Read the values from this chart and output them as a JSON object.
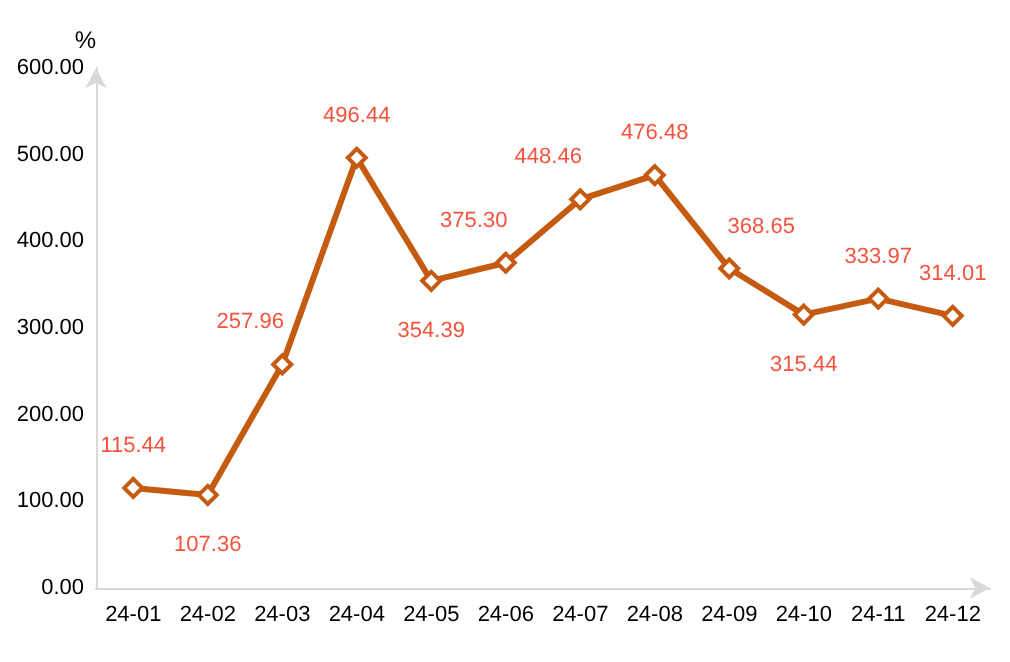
{
  "chart_data": {
    "type": "line",
    "ylabel": "%",
    "categories": [
      "24-01",
      "24-02",
      "24-03",
      "24-04",
      "24-05",
      "24-06",
      "24-07",
      "24-08",
      "24-09",
      "24-10",
      "24-11",
      "24-12"
    ],
    "series": [
      {
        "color": "#c55a11",
        "values": [
          115.44,
          107.36,
          257.96,
          496.44,
          354.39,
          375.3,
          448.46,
          476.48,
          368.65,
          315.44,
          333.97,
          314.01
        ],
        "value_labels": [
          "115.44",
          "107.36",
          "257.96",
          "496.44",
          "354.39",
          "375.30",
          "448.46",
          "476.48",
          "368.65",
          "315.44",
          "333.97",
          "314.01"
        ]
      }
    ],
    "ylim": [
      0,
      600
    ],
    "yticks": [
      {
        "value": 0,
        "label": "0.00"
      },
      {
        "value": 100,
        "label": "100.00"
      },
      {
        "value": 200,
        "label": "200.00"
      },
      {
        "value": 300,
        "label": "300.00"
      },
      {
        "value": 400,
        "label": "400.00"
      },
      {
        "value": 500,
        "label": "500.00"
      },
      {
        "value": 600,
        "label": "600.00"
      }
    ],
    "grid": false,
    "marker": "diamond",
    "line_style": "solid"
  }
}
